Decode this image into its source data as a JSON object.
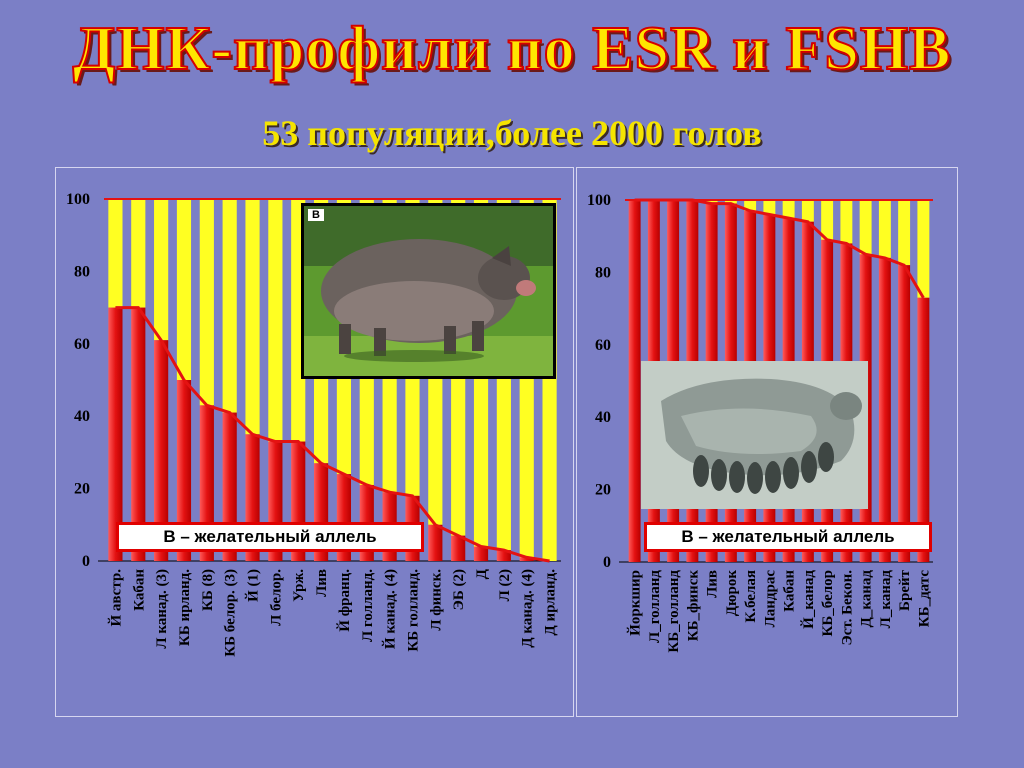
{
  "title": "ДНК-профили по ESR и FSHB",
  "subtitle": "53 популяции,более 2000 голов",
  "colors": {
    "allele_b": "#e41212",
    "other": "#ffff22",
    "background": "#7b7fc6"
  },
  "legend_text": "В – желательный аллель",
  "photo_left_label": "B",
  "chart_data": [
    {
      "type": "bar",
      "stacked": true,
      "ylim": [
        0,
        100
      ],
      "yticks": [
        0,
        20,
        40,
        60,
        80,
        100
      ],
      "categories": [
        "Й австр.",
        "Кабан",
        "Л канад. (3)",
        "КБ ирланд.",
        "КБ (8)",
        "КБ белор. (3)",
        "Й (1)",
        "Л белор.",
        "Урж.",
        "Лив",
        "Й франц.",
        "Л голланд.",
        "Й канад. (4)",
        "КБ голланд.",
        "Л финск.",
        "ЭБ (2)",
        "Д",
        "Л (2)",
        "Д канад. (4)",
        "Д ирланд."
      ],
      "series": [
        {
          "values": [
            70,
            70,
            61,
            50,
            43,
            41,
            35,
            33,
            33,
            27,
            24,
            21,
            19,
            18,
            10,
            7,
            4,
            3,
            1,
            0
          ]
        },
        {
          "values": [
            30,
            30,
            39,
            50,
            57,
            59,
            65,
            67,
            67,
            73,
            76,
            79,
            81,
            82,
            90,
            93,
            96,
            97,
            99,
            100
          ]
        }
      ]
    },
    {
      "type": "bar",
      "stacked": true,
      "ylim": [
        0,
        100
      ],
      "yticks": [
        0,
        20,
        40,
        60,
        80,
        100
      ],
      "categories": [
        "Йоркшир",
        "Л_голланд",
        "КБ_голланд",
        "КБ_финск",
        "Лив",
        "Дюрок",
        "К.белая",
        "Ландрас",
        "Кабан",
        "Й_канад",
        "КБ_белор",
        "Эст. Бекон.",
        "Д_канад",
        "Л_канад",
        "Брейт",
        "КБ_датс"
      ],
      "series": [
        {
          "values": [
            100,
            100,
            100,
            100,
            99,
            99,
            97,
            96,
            95,
            94,
            89,
            88,
            85,
            84,
            82,
            73
          ]
        },
        {
          "values": [
            0,
            0,
            0,
            0,
            1,
            1,
            3,
            4,
            5,
            6,
            11,
            12,
            15,
            16,
            18,
            27
          ]
        }
      ]
    }
  ]
}
